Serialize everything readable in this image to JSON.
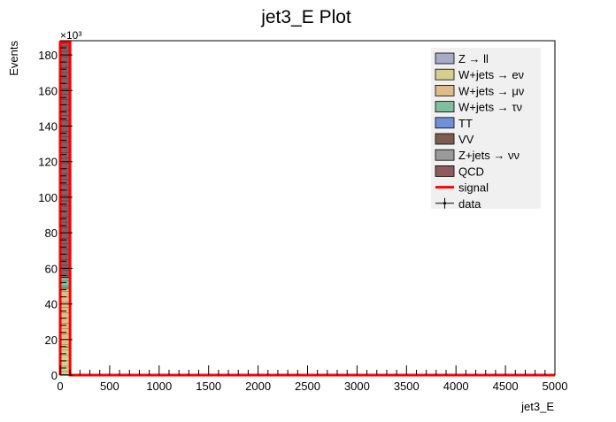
{
  "chart_data": {
    "type": "bar",
    "title": "jet3_E Plot",
    "xlabel": "jet3_E",
    "ylabel": "Events",
    "y_exponent": "×10³",
    "xlim": [
      0,
      5000
    ],
    "ylim": [
      0,
      188
    ],
    "x_ticks": [
      "0",
      "500",
      "1000",
      "1500",
      "2000",
      "2500",
      "3000",
      "3500",
      "4000",
      "4500",
      "5000"
    ],
    "y_ticks": [
      "0",
      "20",
      "40",
      "60",
      "80",
      "100",
      "120",
      "140",
      "160",
      "180"
    ],
    "bin_width": 100,
    "first_bin": [
      0,
      100
    ],
    "stack_first_bin": [
      {
        "name": "Z → ll",
        "color": "#a9a9c9",
        "value": 0.3
      },
      {
        "name": "W+jets → eν",
        "color": "#d4cf8e",
        "value": 15.5
      },
      {
        "name": "W+jets → μν",
        "color": "#e0bb88",
        "value": 33.0
      },
      {
        "name": "W+jets → τν",
        "color": "#7fbf9b",
        "value": 6.0
      },
      {
        "name": "TT",
        "color": "#6f8fd6",
        "value": 0.0
      },
      {
        "name": "VV",
        "color": "#7d5d52",
        "value": 0.1
      },
      {
        "name": "Z+jets → νν",
        "color": "#9a9a9a",
        "value": 0.0
      },
      {
        "name": "QCD",
        "color": "#8c5a5f",
        "value": 132.0
      }
    ],
    "signal": {
      "name": "signal",
      "color": "#ff0000",
      "first_bin_value": 187.0,
      "other_bins_value": 0.0
    },
    "data": {
      "name": "data",
      "color": "#000000"
    },
    "legend": {
      "position": "top-right",
      "entries": [
        {
          "label": "Z → ll",
          "kind": "fill",
          "color": "#a9a9c9"
        },
        {
          "label": "W+jets → eν",
          "kind": "fill",
          "color": "#d4cf8e"
        },
        {
          "label": "W+jets → μν",
          "kind": "fill",
          "color": "#e0bb88"
        },
        {
          "label": "W+jets → τν",
          "kind": "fill",
          "color": "#7fbf9b"
        },
        {
          "label": "TT",
          "kind": "fill",
          "color": "#6f8fd6"
        },
        {
          "label": "VV",
          "kind": "fill",
          "color": "#7d5d52"
        },
        {
          "label": "Z+jets → νν",
          "kind": "fill",
          "color": "#9a9a9a"
        },
        {
          "label": "QCD",
          "kind": "fill",
          "color": "#8c5a5f"
        },
        {
          "label": "signal",
          "kind": "line",
          "color": "#ff0000"
        },
        {
          "label": "data",
          "kind": "marker",
          "color": "#000000"
        }
      ]
    }
  }
}
